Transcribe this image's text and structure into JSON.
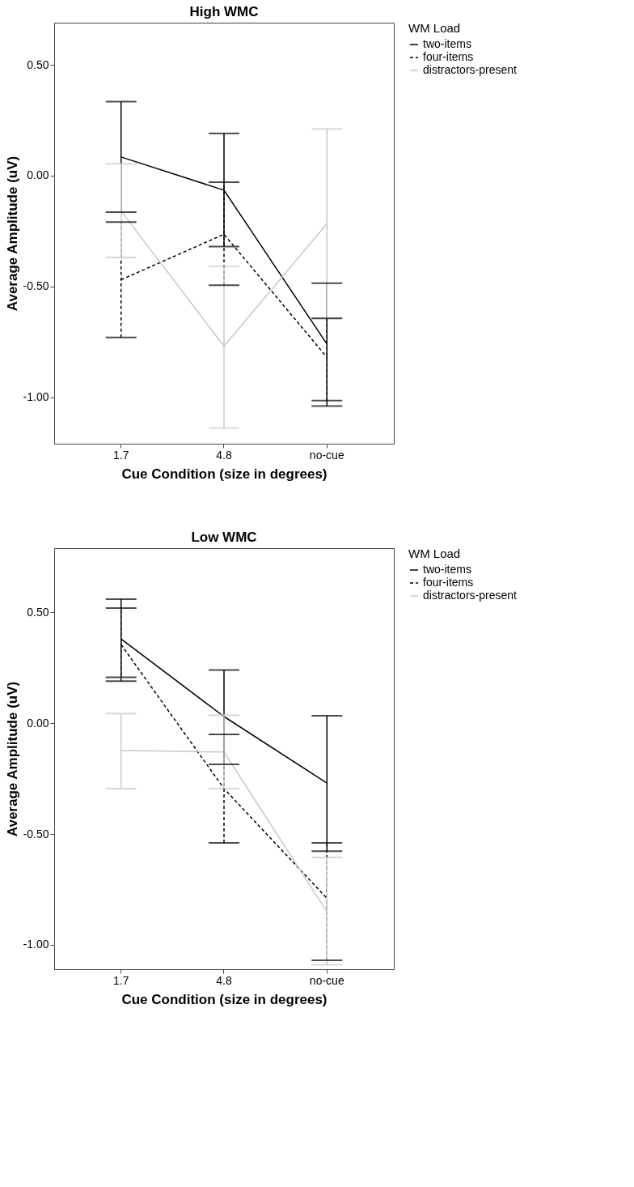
{
  "chart_data": [
    {
      "type": "line",
      "title": "High WMC",
      "xlabel": "Cue Condition (size in degrees)",
      "ylabel": "Average Amplitude (uV)",
      "legend_title": "WM Load",
      "legend": "right",
      "grid": false,
      "categories": [
        "1.7",
        "4.8",
        "no-cue"
      ],
      "ylim": [
        -1.21,
        0.69
      ],
      "yticks": [
        {
          "value": -1,
          "label": "-1.00"
        },
        {
          "value": -0.5,
          "label": "-0.50"
        },
        {
          "value": 0,
          "label": "0.00"
        },
        {
          "value": 0.5,
          "label": "0.50"
        }
      ],
      "series": [
        {
          "name": "two-items",
          "color": "#000000",
          "line_style": "solid",
          "values": [
            0.084,
            -0.066,
            -0.76
          ],
          "errors": [
            [
              -0.165,
              0.334
            ],
            [
              -0.32,
              0.19
            ],
            [
              -1.04,
              -0.486
            ]
          ]
        },
        {
          "name": "four-items",
          "color": "#000000",
          "line_style": "dashed",
          "values": [
            -0.47,
            -0.265,
            -0.82
          ],
          "errors": [
            [
              -0.73,
              -0.21
            ],
            [
              -0.495,
              -0.03
            ],
            [
              -1.015,
              -0.645
            ]
          ]
        },
        {
          "name": "distractors-present",
          "color": "#c8c8c8",
          "line_style": "solid",
          "values": [
            -0.16,
            -0.77,
            -0.217
          ],
          "errors": [
            [
              -0.37,
              0.053
            ],
            [
              -1.14,
              -0.41
            ],
            [
              -0.643,
              0.21
            ]
          ]
        }
      ]
    },
    {
      "type": "line",
      "title": "Low WMC",
      "xlabel": "Cue Condition (size in degrees)",
      "ylabel": "Average Amplitude (uV)",
      "legend_title": "WM Load",
      "legend": "right",
      "grid": false,
      "categories": [
        "1.7",
        "4.8",
        "no-cue"
      ],
      "ylim": [
        -1.11,
        0.79
      ],
      "yticks": [
        {
          "value": -1,
          "label": "-1.00"
        },
        {
          "value": -0.5,
          "label": "-0.50"
        },
        {
          "value": 0,
          "label": "0.00"
        },
        {
          "value": 0.5,
          "label": "0.50"
        }
      ],
      "series": [
        {
          "name": "two-items",
          "color": "#000000",
          "line_style": "solid",
          "values": [
            0.38,
            0.03,
            -0.27
          ],
          "errors": [
            [
              0.207,
              0.56
            ],
            [
              -0.186,
              0.24
            ],
            [
              -0.577,
              0.034
            ]
          ]
        },
        {
          "name": "four-items",
          "color": "#000000",
          "line_style": "dashed",
          "values": [
            0.355,
            -0.295,
            -0.79
          ],
          "errors": [
            [
              0.19,
              0.52
            ],
            [
              -0.54,
              -0.05
            ],
            [
              -1.07,
              -0.54
            ]
          ]
        },
        {
          "name": "distractors-present",
          "color": "#c8c8c8",
          "line_style": "solid",
          "values": [
            -0.123,
            -0.13,
            -0.85
          ],
          "errors": [
            [
              -0.295,
              0.044
            ],
            [
              -0.295,
              0.036
            ],
            [
              -1.09,
              -0.606
            ]
          ]
        }
      ]
    }
  ]
}
